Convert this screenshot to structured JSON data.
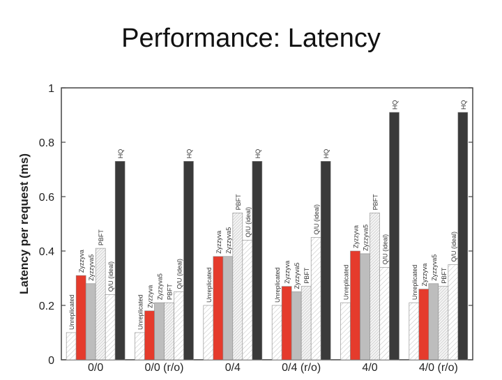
{
  "slide": {
    "title": "Performance: Latency"
  },
  "chart_data": {
    "type": "bar",
    "title": "Performance: Latency",
    "xlabel": "",
    "ylabel": "Latency per request (ms)",
    "ylim": [
      0,
      1
    ],
    "yticks": [
      "0",
      "0.2",
      "0.4",
      "0.6",
      "0.8",
      "1"
    ],
    "grid": false,
    "categories": [
      "0/0",
      "0/0 (r/o)",
      "0/4",
      "0/4 (r/o)",
      "4/0",
      "4/0 (r/o)"
    ],
    "series": [
      {
        "name": "Unreplicated",
        "color": "#ffffff",
        "pattern": "hatch-light",
        "values": [
          0.1,
          0.1,
          0.2,
          0.2,
          0.21,
          0.21
        ]
      },
      {
        "name": "Zyzzyva",
        "color": "#e53b2c",
        "pattern": "solid",
        "values": [
          0.31,
          0.18,
          0.38,
          0.27,
          0.4,
          0.26
        ]
      },
      {
        "name": "Zyzzyva5",
        "color": "#bdbdbd",
        "pattern": "solid",
        "values": [
          0.28,
          0.21,
          0.38,
          0.25,
          0.39,
          0.28
        ]
      },
      {
        "name": "PBFT",
        "color": "#e0e0e0",
        "pattern": "hatch-dense",
        "values": [
          0.41,
          0.21,
          0.54,
          0.27,
          0.54,
          0.27
        ]
      },
      {
        "name": "Q/U (ideal)",
        "color": "#e8e8e8",
        "pattern": "hatch-light",
        "values": [
          0.24,
          0.25,
          0.44,
          0.45,
          0.34,
          0.35
        ]
      },
      {
        "name": "HQ",
        "color": "#3a3a3a",
        "pattern": "solid",
        "values": [
          0.73,
          0.73,
          0.73,
          0.73,
          0.91,
          0.91
        ]
      }
    ],
    "bar_labels": [
      [
        "Unreplicated",
        "Zyzzyva",
        "Zyzzyva5",
        "PBFT",
        "Q/U (ideal)",
        "HQ"
      ],
      [
        "Unreplicated",
        "Zyzzyva",
        "Zyzzyva5",
        "PBFT",
        "Q/U (ideal)",
        "HQ"
      ],
      [
        "Unreplicated",
        "Zyzzyva",
        "Zyzzyva5",
        "PBFT",
        "Q/U (ideal)",
        "HQ"
      ],
      [
        "Unreplicated",
        "Zyzzyva",
        "Zyzzyva5",
        "PBFT",
        "Q/U (ideal)",
        "HQ"
      ],
      [
        "Unreplicated",
        "Zyzzyva",
        "Zyzzyva5",
        "PBFT",
        "Q/U (ideal)",
        "HQ"
      ],
      [
        "Unreplicated",
        "Zyzzyva",
        "Zyzzyva5",
        "PBFT",
        "Q/U (ideal)",
        "HQ"
      ]
    ]
  }
}
